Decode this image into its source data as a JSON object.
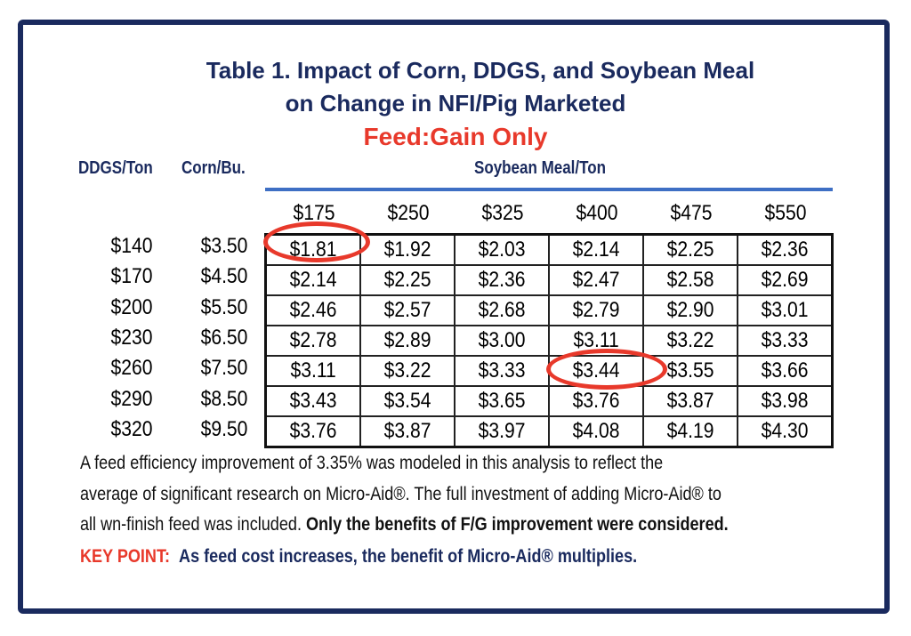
{
  "title": {
    "line1": "Table 1.  Impact of Corn, DDGS, and Soybean Meal",
    "line2": "on Change in NFI/Pig Marketed",
    "line3": "Feed:Gain Only"
  },
  "table": {
    "row_header_ddgs": "DDGS/Ton",
    "row_header_corn": "Corn/Bu.",
    "column_group": "Soybean Meal/Ton",
    "columns": [
      "$175",
      "$250",
      "$325",
      "$400",
      "$475",
      "$550"
    ],
    "rows": [
      {
        "ddgs": "$140",
        "corn": "$3.50",
        "values": [
          "$1.81",
          "$1.92",
          "$2.03",
          "$2.14",
          "$2.25",
          "$2.36"
        ]
      },
      {
        "ddgs": "$170",
        "corn": "$4.50",
        "values": [
          "$2.14",
          "$2.25",
          "$2.36",
          "$2.47",
          "$2.58",
          "$2.69"
        ]
      },
      {
        "ddgs": "$200",
        "corn": "$5.50",
        "values": [
          "$2.46",
          "$2.57",
          "$2.68",
          "$2.79",
          "$2.90",
          "$3.01"
        ]
      },
      {
        "ddgs": "$230",
        "corn": "$6.50",
        "values": [
          "$2.78",
          "$2.89",
          "$3.00",
          "$3.11",
          "$3.22",
          "$3.33"
        ]
      },
      {
        "ddgs": "$260",
        "corn": "$7.50",
        "values": [
          "$3.11",
          "$3.22",
          "$3.33",
          "$3.44",
          "$3.55",
          "$3.66"
        ]
      },
      {
        "ddgs": "$290",
        "corn": "$8.50",
        "values": [
          "$3.43",
          "$3.54",
          "$3.65",
          "$3.76",
          "$3.87",
          "$3.98"
        ]
      },
      {
        "ddgs": "$320",
        "corn": "$9.50",
        "values": [
          "$3.76",
          "$3.87",
          "$3.97",
          "$4.08",
          "$4.19",
          "$4.30"
        ]
      }
    ],
    "highlighted_cells": [
      "$1.81",
      "$3.44"
    ]
  },
  "notes": {
    "line1": "A feed efficiency improvement of 3.35% was modeled in this analysis to reflect the",
    "line2": "average of significant research on Micro-Aid®. The full investment of adding Micro-Aid® to",
    "line3_plain": "all wn-finish feed was included. ",
    "line3_bold": "Only the benefits of F/G improvement were considered.",
    "key_label": "KEY POINT:",
    "key_text": "As feed cost increases, the benefit of Micro-Aid® multiplies."
  },
  "colors": {
    "navy": "#1a2a5e",
    "red": "#e8392b",
    "blue_rule": "#3e6fc4"
  }
}
